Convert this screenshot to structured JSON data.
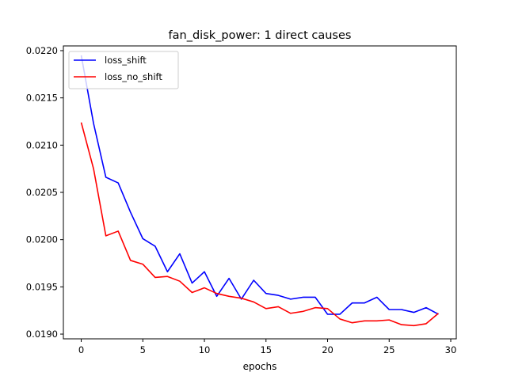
{
  "chart_data": {
    "type": "line",
    "title": "fan_disk_power: 1 direct causes",
    "xlabel": "epochs",
    "ylabel": "",
    "xlim": [
      -1.45,
      30.45
    ],
    "ylim": [
      0.01895,
      0.02205
    ],
    "xticks": [
      0,
      5,
      10,
      15,
      20,
      25,
      30
    ],
    "xtick_labels": [
      "0",
      "5",
      "10",
      "15",
      "20",
      "25",
      "30"
    ],
    "yticks": [
      0.019,
      0.0195,
      0.02,
      0.0205,
      0.021,
      0.0215,
      0.022
    ],
    "ytick_labels": [
      "0.0190",
      "0.0195",
      "0.0200",
      "0.0205",
      "0.0210",
      "0.0215",
      "0.0220"
    ],
    "grid": false,
    "legend_position": "top-left",
    "x": [
      0,
      1,
      2,
      3,
      4,
      5,
      6,
      7,
      8,
      9,
      10,
      11,
      12,
      13,
      14,
      15,
      16,
      17,
      18,
      19,
      20,
      21,
      22,
      23,
      24,
      25,
      26,
      27,
      28,
      29
    ],
    "series": [
      {
        "name": "loss_shift",
        "color": "#0000ff",
        "values": [
          0.02195,
          0.02123,
          0.02066,
          0.0206,
          0.02029,
          0.02001,
          0.01993,
          0.01966,
          0.01985,
          0.01954,
          0.01966,
          0.0194,
          0.01959,
          0.01937,
          0.01957,
          0.01943,
          0.01941,
          0.01937,
          0.01939,
          0.01939,
          0.01921,
          0.01921,
          0.01933,
          0.01933,
          0.01939,
          0.01926,
          0.01926,
          0.01923,
          0.01928,
          0.01921
        ]
      },
      {
        "name": "loss_no_shift",
        "color": "#ff0000",
        "values": [
          0.02124,
          0.02075,
          0.02004,
          0.02009,
          0.01978,
          0.01974,
          0.0196,
          0.01961,
          0.01956,
          0.01944,
          0.01949,
          0.01943,
          0.0194,
          0.01938,
          0.01934,
          0.01927,
          0.01929,
          0.01922,
          0.01924,
          0.01928,
          0.01927,
          0.01916,
          0.01912,
          0.01914,
          0.01914,
          0.01915,
          0.0191,
          0.01909,
          0.01911,
          0.01922
        ]
      }
    ]
  }
}
